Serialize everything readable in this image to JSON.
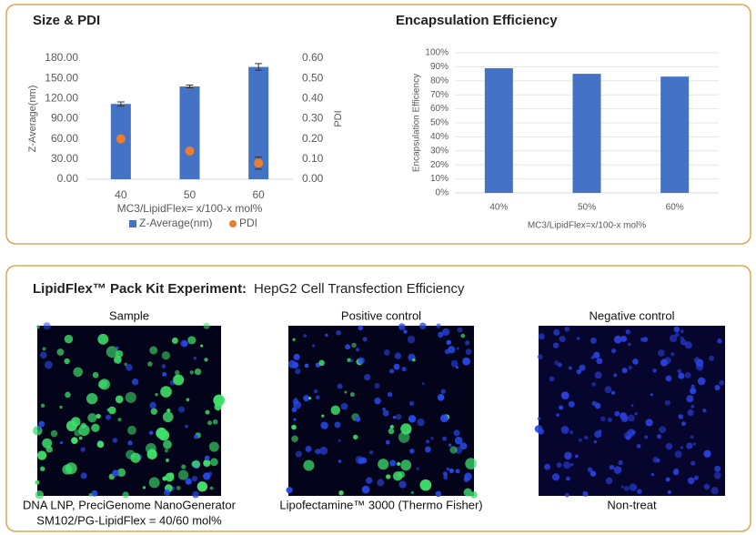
{
  "chart_data": [
    {
      "type": "bar",
      "title": "Size & PDI",
      "categories": [
        "40",
        "50",
        "60"
      ],
      "xlabel": "MC3/LipidFlex= x/100-x mol%",
      "ylabel": "Z-Average(nm)",
      "y2label": "PDI",
      "series": [
        {
          "name": "Z-Average(nm)",
          "type": "bar",
          "color": "#4472c4",
          "values": [
            112,
            138,
            167
          ],
          "errors": [
            3,
            2,
            5
          ]
        },
        {
          "name": "PDI",
          "type": "scatter",
          "axis": "y2",
          "color": "#ed7d31",
          "values": [
            0.2,
            0.14,
            0.08
          ],
          "errors": [
            null,
            null,
            0.03
          ]
        }
      ],
      "ylim": [
        0,
        180
      ],
      "yticks": [
        {
          "value": 0,
          "label": "0.00"
        },
        {
          "value": 30,
          "label": "30.00"
        },
        {
          "value": 60,
          "label": "60.00"
        },
        {
          "value": 90,
          "label": "90.00"
        },
        {
          "value": 120,
          "label": "120.00"
        },
        {
          "value": 150,
          "label": "150.00"
        },
        {
          "value": 180,
          "label": "180.00"
        }
      ],
      "y2lim": [
        0,
        0.6
      ],
      "y2ticks": [
        {
          "value": 0,
          "label": "0.00"
        },
        {
          "value": 0.1,
          "label": "0.10"
        },
        {
          "value": 0.2,
          "label": "0.20"
        },
        {
          "value": 0.3,
          "label": "0.30"
        },
        {
          "value": 0.4,
          "label": "0.40"
        },
        {
          "value": 0.5,
          "label": "0.50"
        },
        {
          "value": 0.6,
          "label": "0.60"
        }
      ],
      "legend": "bottom"
    },
    {
      "type": "bar",
      "title": "Encapsulation Efficiency",
      "categories": [
        "40%",
        "50%",
        "60%"
      ],
      "xlabel": "MC3/LipidFlex=x/100-x mol%",
      "ylabel": "Encapsulation Efficiency",
      "series": [
        {
          "type": "bar",
          "color": "#4472c4",
          "values": [
            89,
            85,
            83
          ]
        }
      ],
      "ylim": [
        0,
        100
      ],
      "yticks": [
        {
          "value": 0,
          "label": "0%"
        },
        {
          "value": 10,
          "label": "10%"
        },
        {
          "value": 20,
          "label": "20%"
        },
        {
          "value": 30,
          "label": "30%"
        },
        {
          "value": 40,
          "label": "40%"
        },
        {
          "value": 50,
          "label": "50%"
        },
        {
          "value": 60,
          "label": "60%"
        },
        {
          "value": 70,
          "label": "70%"
        },
        {
          "value": 80,
          "label": "80%"
        },
        {
          "value": 90,
          "label": "90%"
        },
        {
          "value": 100,
          "label": "100%"
        }
      ]
    }
  ],
  "panel": {
    "title_bold": "LipidFlex™ Pack Kit Experiment:",
    "title": "HepG2 Cell Transfection Efficiency",
    "images": [
      {
        "label": "Sample",
        "caption": [
          "DNA LNP, PreciGenome NanoGenerator",
          "SM102/PG-LipidFlex = 40/60 mol%"
        ]
      },
      {
        "label": "Positive control",
        "caption": [
          "Lipofectamine™ 3000 (Thermo Fisher)"
        ]
      },
      {
        "label": "Negative control",
        "caption": [
          "Non-treat"
        ]
      }
    ]
  }
}
